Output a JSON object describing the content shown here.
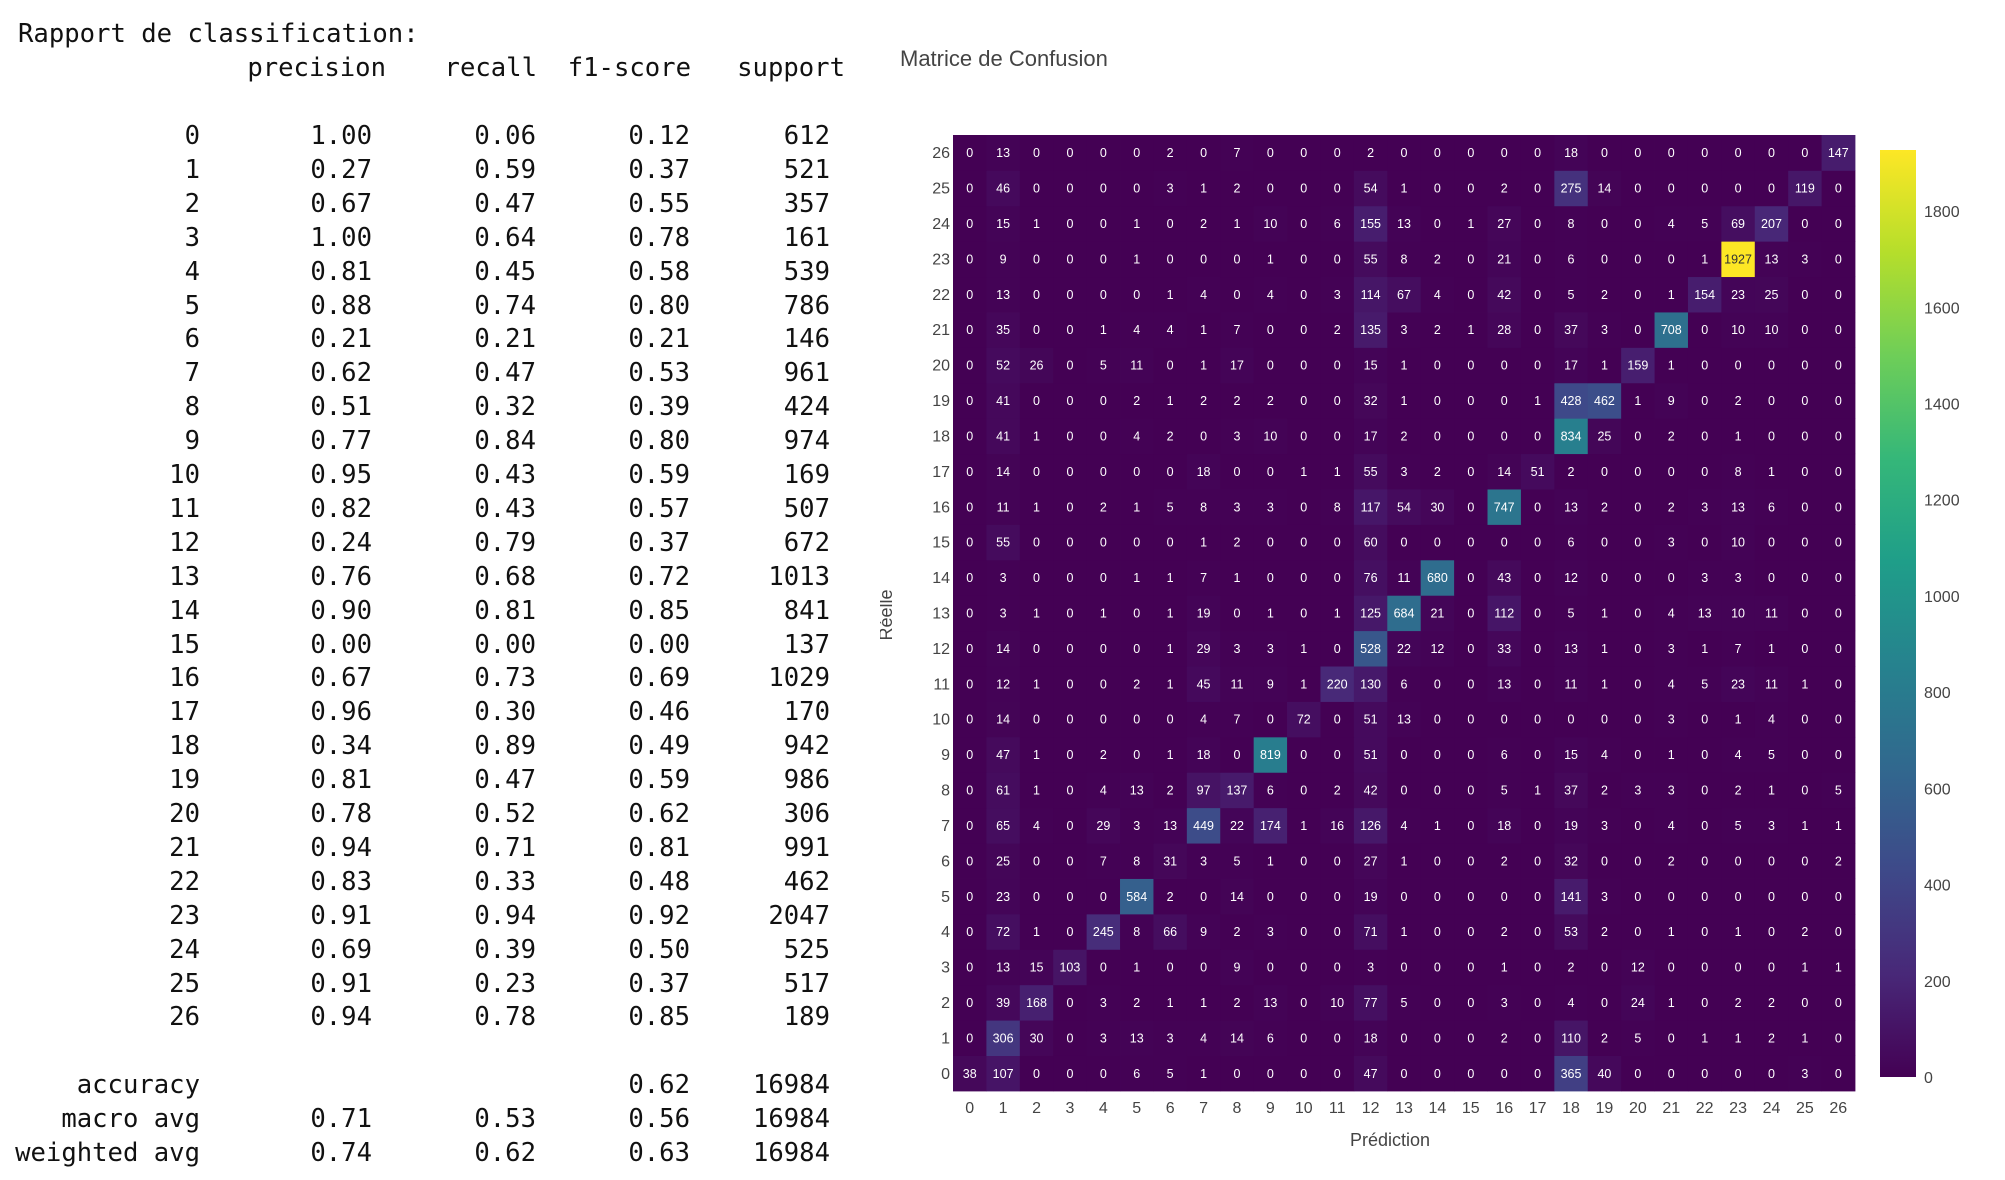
{
  "report": {
    "title": "Rapport de classification:",
    "headers": [
      "precision",
      "recall",
      "f1-score",
      "support"
    ],
    "rows": [
      {
        "label": "0",
        "precision": "1.00",
        "recall": "0.06",
        "f1": "0.12",
        "support": "612"
      },
      {
        "label": "1",
        "precision": "0.27",
        "recall": "0.59",
        "f1": "0.37",
        "support": "521"
      },
      {
        "label": "2",
        "precision": "0.67",
        "recall": "0.47",
        "f1": "0.55",
        "support": "357"
      },
      {
        "label": "3",
        "precision": "1.00",
        "recall": "0.64",
        "f1": "0.78",
        "support": "161"
      },
      {
        "label": "4",
        "precision": "0.81",
        "recall": "0.45",
        "f1": "0.58",
        "support": "539"
      },
      {
        "label": "5",
        "precision": "0.88",
        "recall": "0.74",
        "f1": "0.80",
        "support": "786"
      },
      {
        "label": "6",
        "precision": "0.21",
        "recall": "0.21",
        "f1": "0.21",
        "support": "146"
      },
      {
        "label": "7",
        "precision": "0.62",
        "recall": "0.47",
        "f1": "0.53",
        "support": "961"
      },
      {
        "label": "8",
        "precision": "0.51",
        "recall": "0.32",
        "f1": "0.39",
        "support": "424"
      },
      {
        "label": "9",
        "precision": "0.77",
        "recall": "0.84",
        "f1": "0.80",
        "support": "974"
      },
      {
        "label": "10",
        "precision": "0.95",
        "recall": "0.43",
        "f1": "0.59",
        "support": "169"
      },
      {
        "label": "11",
        "precision": "0.82",
        "recall": "0.43",
        "f1": "0.57",
        "support": "507"
      },
      {
        "label": "12",
        "precision": "0.24",
        "recall": "0.79",
        "f1": "0.37",
        "support": "672"
      },
      {
        "label": "13",
        "precision": "0.76",
        "recall": "0.68",
        "f1": "0.72",
        "support": "1013"
      },
      {
        "label": "14",
        "precision": "0.90",
        "recall": "0.81",
        "f1": "0.85",
        "support": "841"
      },
      {
        "label": "15",
        "precision": "0.00",
        "recall": "0.00",
        "f1": "0.00",
        "support": "137"
      },
      {
        "label": "16",
        "precision": "0.67",
        "recall": "0.73",
        "f1": "0.69",
        "support": "1029"
      },
      {
        "label": "17",
        "precision": "0.96",
        "recall": "0.30",
        "f1": "0.46",
        "support": "170"
      },
      {
        "label": "18",
        "precision": "0.34",
        "recall": "0.89",
        "f1": "0.49",
        "support": "942"
      },
      {
        "label": "19",
        "precision": "0.81",
        "recall": "0.47",
        "f1": "0.59",
        "support": "986"
      },
      {
        "label": "20",
        "precision": "0.78",
        "recall": "0.52",
        "f1": "0.62",
        "support": "306"
      },
      {
        "label": "21",
        "precision": "0.94",
        "recall": "0.71",
        "f1": "0.81",
        "support": "991"
      },
      {
        "label": "22",
        "precision": "0.83",
        "recall": "0.33",
        "f1": "0.48",
        "support": "462"
      },
      {
        "label": "23",
        "precision": "0.91",
        "recall": "0.94",
        "f1": "0.92",
        "support": "2047"
      },
      {
        "label": "24",
        "precision": "0.69",
        "recall": "0.39",
        "f1": "0.50",
        "support": "525"
      },
      {
        "label": "25",
        "precision": "0.91",
        "recall": "0.23",
        "f1": "0.37",
        "support": "517"
      },
      {
        "label": "26",
        "precision": "0.94",
        "recall": "0.78",
        "f1": "0.85",
        "support": "189"
      }
    ],
    "summary": [
      {
        "label": "accuracy",
        "precision": "",
        "recall": "",
        "f1": "0.62",
        "support": "16984"
      },
      {
        "label": "macro avg",
        "precision": "0.71",
        "recall": "0.53",
        "f1": "0.56",
        "support": "16984"
      },
      {
        "label": "weighted avg",
        "precision": "0.74",
        "recall": "0.62",
        "f1": "0.63",
        "support": "16984"
      }
    ]
  },
  "chart_data": {
    "type": "heatmap",
    "title": "Matrice de Confusion",
    "xlabel": "Prédiction",
    "ylabel": "Réelle",
    "x": [
      "0",
      "1",
      "2",
      "3",
      "4",
      "5",
      "6",
      "7",
      "8",
      "9",
      "10",
      "11",
      "12",
      "13",
      "14",
      "15",
      "16",
      "17",
      "18",
      "19",
      "20",
      "21",
      "22",
      "23",
      "24",
      "25",
      "26"
    ],
    "y": [
      "0",
      "1",
      "2",
      "3",
      "4",
      "5",
      "6",
      "7",
      "8",
      "9",
      "10",
      "11",
      "12",
      "13",
      "14",
      "15",
      "16",
      "17",
      "18",
      "19",
      "20",
      "21",
      "22",
      "23",
      "24",
      "25",
      "26"
    ],
    "colorscale": "viridis",
    "zmin": 0,
    "zmax": 1927,
    "colorbar_ticks": [
      0,
      200,
      400,
      600,
      800,
      1000,
      1200,
      1400,
      1600,
      1800
    ],
    "z": [
      [
        38,
        107,
        0,
        0,
        0,
        6,
        5,
        1,
        0,
        0,
        0,
        0,
        47,
        0,
        0,
        0,
        0,
        0,
        365,
        40,
        0,
        0,
        0,
        0,
        0,
        3,
        0
      ],
      [
        0,
        306,
        30,
        0,
        3,
        13,
        3,
        4,
        14,
        6,
        0,
        0,
        18,
        0,
        0,
        0,
        2,
        0,
        110,
        2,
        5,
        0,
        1,
        1,
        2,
        1,
        0
      ],
      [
        0,
        39,
        168,
        0,
        3,
        2,
        1,
        1,
        2,
        13,
        0,
        10,
        77,
        5,
        0,
        0,
        3,
        0,
        4,
        0,
        24,
        1,
        0,
        2,
        2,
        0,
        0
      ],
      [
        0,
        13,
        15,
        103,
        0,
        1,
        0,
        0,
        9,
        0,
        0,
        0,
        3,
        0,
        0,
        0,
        1,
        0,
        2,
        0,
        12,
        0,
        0,
        0,
        0,
        1,
        1
      ],
      [
        0,
        72,
        1,
        0,
        245,
        8,
        66,
        9,
        2,
        3,
        0,
        0,
        71,
        1,
        0,
        0,
        2,
        0,
        53,
        2,
        0,
        1,
        0,
        1,
        0,
        2,
        0
      ],
      [
        0,
        23,
        0,
        0,
        0,
        584,
        2,
        0,
        14,
        0,
        0,
        0,
        19,
        0,
        0,
        0,
        0,
        0,
        141,
        3,
        0,
        0,
        0,
        0,
        0,
        0,
        0
      ],
      [
        0,
        25,
        0,
        0,
        7,
        8,
        31,
        3,
        5,
        1,
        0,
        0,
        27,
        1,
        0,
        0,
        2,
        0,
        32,
        0,
        0,
        2,
        0,
        0,
        0,
        0,
        2
      ],
      [
        0,
        65,
        4,
        0,
        29,
        3,
        13,
        449,
        22,
        174,
        1,
        16,
        126,
        4,
        1,
        0,
        18,
        0,
        19,
        3,
        0,
        4,
        0,
        5,
        3,
        1,
        1
      ],
      [
        0,
        61,
        1,
        0,
        4,
        13,
        2,
        97,
        137,
        6,
        0,
        2,
        42,
        0,
        0,
        0,
        5,
        1,
        37,
        2,
        3,
        3,
        0,
        2,
        1,
        0,
        5
      ],
      [
        0,
        47,
        1,
        0,
        2,
        0,
        1,
        18,
        0,
        819,
        0,
        0,
        51,
        0,
        0,
        0,
        6,
        0,
        15,
        4,
        0,
        1,
        0,
        4,
        5,
        0,
        0
      ],
      [
        0,
        14,
        0,
        0,
        0,
        0,
        0,
        4,
        7,
        0,
        72,
        0,
        51,
        13,
        0,
        0,
        0,
        0,
        0,
        0,
        0,
        3,
        0,
        1,
        4,
        0,
        0
      ],
      [
        0,
        12,
        1,
        0,
        0,
        2,
        1,
        45,
        11,
        9,
        1,
        220,
        130,
        6,
        0,
        0,
        13,
        0,
        11,
        1,
        0,
        4,
        5,
        23,
        11,
        1,
        0
      ],
      [
        0,
        14,
        0,
        0,
        0,
        0,
        1,
        29,
        3,
        3,
        1,
        0,
        528,
        22,
        12,
        0,
        33,
        0,
        13,
        1,
        0,
        3,
        1,
        7,
        1,
        0,
        0
      ],
      [
        0,
        3,
        1,
        0,
        1,
        0,
        1,
        19,
        0,
        1,
        0,
        1,
        125,
        684,
        21,
        0,
        112,
        0,
        5,
        1,
        0,
        4,
        13,
        10,
        11,
        0,
        0
      ],
      [
        0,
        3,
        0,
        0,
        0,
        1,
        1,
        7,
        1,
        0,
        0,
        0,
        76,
        11,
        680,
        0,
        43,
        0,
        12,
        0,
        0,
        0,
        3,
        3,
        0,
        0,
        0
      ],
      [
        0,
        55,
        0,
        0,
        0,
        0,
        0,
        1,
        2,
        0,
        0,
        0,
        60,
        0,
        0,
        0,
        0,
        0,
        6,
        0,
        0,
        3,
        0,
        10,
        0,
        0,
        0
      ],
      [
        0,
        11,
        1,
        0,
        2,
        1,
        5,
        8,
        3,
        3,
        0,
        8,
        117,
        54,
        30,
        0,
        747,
        0,
        13,
        2,
        0,
        2,
        3,
        13,
        6,
        0,
        0
      ],
      [
        0,
        14,
        0,
        0,
        0,
        0,
        0,
        18,
        0,
        0,
        1,
        1,
        55,
        3,
        2,
        0,
        14,
        51,
        2,
        0,
        0,
        0,
        0,
        8,
        1,
        0,
        0
      ],
      [
        0,
        41,
        1,
        0,
        0,
        4,
        2,
        0,
        3,
        10,
        0,
        0,
        17,
        2,
        0,
        0,
        0,
        0,
        834,
        25,
        0,
        2,
        0,
        1,
        0,
        0,
        0
      ],
      [
        0,
        41,
        0,
        0,
        0,
        2,
        1,
        2,
        2,
        2,
        0,
        0,
        32,
        1,
        0,
        0,
        0,
        1,
        428,
        462,
        1,
        9,
        0,
        2,
        0,
        0,
        0
      ],
      [
        0,
        52,
        26,
        0,
        5,
        11,
        0,
        1,
        17,
        0,
        0,
        0,
        15,
        1,
        0,
        0,
        0,
        0,
        17,
        1,
        159,
        1,
        0,
        0,
        0,
        0,
        0
      ],
      [
        0,
        35,
        0,
        0,
        1,
        4,
        4,
        1,
        7,
        0,
        0,
        2,
        135,
        3,
        2,
        1,
        28,
        0,
        37,
        3,
        0,
        708,
        0,
        10,
        10,
        0,
        0
      ],
      [
        0,
        13,
        0,
        0,
        0,
        0,
        1,
        4,
        0,
        4,
        0,
        3,
        114,
        67,
        4,
        0,
        42,
        0,
        5,
        2,
        0,
        1,
        154,
        23,
        25,
        0,
        0
      ],
      [
        0,
        9,
        0,
        0,
        0,
        1,
        0,
        0,
        0,
        1,
        0,
        0,
        55,
        8,
        2,
        0,
        21,
        0,
        6,
        0,
        0,
        0,
        1,
        1927,
        13,
        3,
        0
      ],
      [
        0,
        15,
        1,
        0,
        0,
        1,
        0,
        2,
        1,
        10,
        0,
        6,
        155,
        13,
        0,
        1,
        27,
        0,
        8,
        0,
        0,
        4,
        5,
        69,
        207,
        0,
        0
      ],
      [
        0,
        46,
        0,
        0,
        0,
        0,
        3,
        1,
        2,
        0,
        0,
        0,
        54,
        1,
        0,
        0,
        2,
        0,
        275,
        14,
        0,
        0,
        0,
        0,
        0,
        119,
        0
      ],
      [
        0,
        13,
        0,
        0,
        0,
        0,
        2,
        0,
        7,
        0,
        0,
        0,
        2,
        0,
        0,
        0,
        0,
        0,
        18,
        0,
        0,
        0,
        0,
        0,
        0,
        0,
        147
      ]
    ]
  }
}
